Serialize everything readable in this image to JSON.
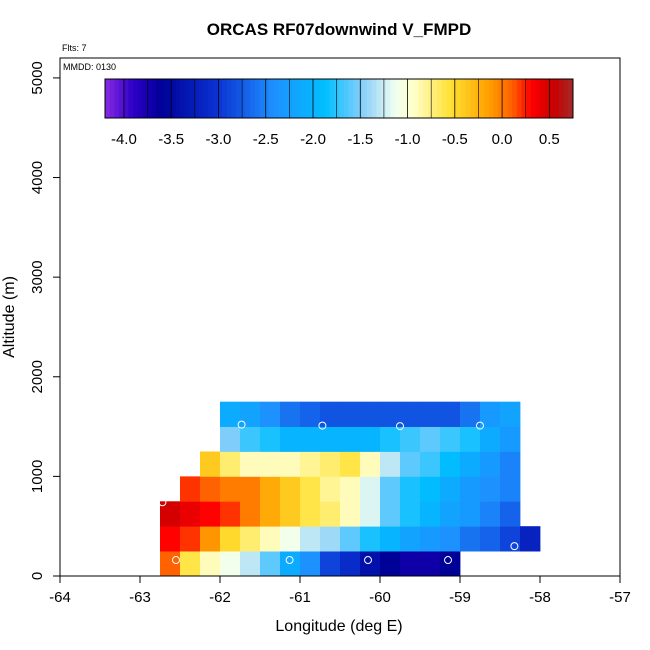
{
  "chart_data": {
    "type": "heatmap",
    "title": "ORCAS RF07downwind V_FMPD",
    "xlabel": "Longitude (deg E)",
    "ylabel": "Altitude (m)",
    "xlim": [
      -64,
      -57
    ],
    "ylim": [
      0,
      5200
    ],
    "x_ticks": [
      -64,
      -63,
      -62,
      -61,
      -60,
      -59,
      -58,
      -57
    ],
    "x_tick_labels": [
      "-64",
      "-63",
      "-62",
      "-61",
      "-60",
      "-59",
      "-58",
      "-57"
    ],
    "y_ticks": [
      0,
      1000,
      2000,
      3000,
      4000,
      5000
    ],
    "y_tick_labels": [
      "0",
      "1000",
      "2000",
      "3000",
      "4000",
      "5000"
    ],
    "annotations": {
      "flights": "Flts: 7",
      "mmdd": "MMDD: 0130"
    },
    "colorbar": {
      "range": [
        -4.2,
        0.75
      ],
      "ticks": [
        -4.0,
        -3.5,
        -3.0,
        -2.5,
        -2.0,
        -1.5,
        -1.0,
        -0.5,
        0.0,
        0.5
      ],
      "tick_labels": [
        "-4.0",
        "-3.5",
        "-3.0",
        "-2.5",
        "-2.0",
        "-1.5",
        "-1.0",
        "-0.5",
        "0.0",
        "0.5"
      ],
      "stops": [
        [
          0.0,
          "#8a2be2"
        ],
        [
          0.06,
          "#2d00c8"
        ],
        [
          0.12,
          "#000096"
        ],
        [
          0.24,
          "#0a32d2"
        ],
        [
          0.36,
          "#1e90ff"
        ],
        [
          0.47,
          "#00bfff"
        ],
        [
          0.55,
          "#87cefa"
        ],
        [
          0.62,
          "#f0fff0"
        ],
        [
          0.66,
          "#ffffc8"
        ],
        [
          0.74,
          "#ffe030"
        ],
        [
          0.82,
          "#ffa000"
        ],
        [
          0.87,
          "#ff6000"
        ],
        [
          0.91,
          "#ff0000"
        ],
        [
          0.96,
          "#c80000"
        ],
        [
          1.0,
          "#a52a2a"
        ]
      ]
    },
    "cell_size": {
      "lon": 0.25,
      "alt": 250
    },
    "cells": [
      {
        "row_alt": 0,
        "lon_start": -62.75,
        "values": [
          0.1,
          -0.6,
          -0.9,
          -1.1,
          -1.3,
          -1.6,
          -2.1,
          -2.4,
          -2.9,
          -3.1,
          -3.4,
          -3.6,
          -3.7,
          -3.7,
          -3.6
        ]
      },
      {
        "row_alt": 250,
        "lon_start": -62.75,
        "values": [
          0.3,
          0.2,
          -0.1,
          -0.5,
          -0.7,
          -0.9,
          -1.1,
          -1.3,
          -1.4,
          -1.6,
          -1.8,
          -2.0,
          -2.2,
          -2.3,
          -2.4,
          -2.6,
          -2.7,
          -2.9,
          -3.2
        ]
      },
      {
        "row_alt": 500,
        "lon_start": -62.75,
        "values": [
          0.5,
          0.4,
          0.3,
          0.2,
          0.0,
          -0.2,
          -0.4,
          -0.6,
          -0.7,
          -0.9,
          -1.2,
          -1.6,
          -1.8,
          -2.0,
          -2.2,
          -2.3,
          -2.5,
          -2.7
        ]
      },
      {
        "row_alt": 750,
        "lon_start": -62.5,
        "values": [
          0.2,
          0.1,
          0.0,
          0.0,
          -0.2,
          -0.4,
          -0.6,
          -0.8,
          -0.9,
          -1.2,
          -1.6,
          -1.8,
          -1.9,
          -2.1,
          -2.3,
          -2.4,
          -2.5
        ]
      },
      {
        "row_alt": 1000,
        "lon_start": -62.25,
        "values": [
          -0.4,
          -0.7,
          -0.9,
          -0.9,
          -0.9,
          -0.8,
          -0.7,
          -0.6,
          -0.9,
          -1.3,
          -1.6,
          -1.7,
          -1.9,
          -2.1,
          -2.3,
          -2.5
        ]
      },
      {
        "row_alt": 1250,
        "lon_start": -62.0,
        "values": [
          -1.5,
          -1.7,
          -1.8,
          -2.0,
          -2.0,
          -2.0,
          -2.0,
          -2.0,
          -1.8,
          -1.7,
          -1.6,
          -1.7,
          -1.8,
          -2.1,
          -2.3
        ]
      },
      {
        "row_alt": 1500,
        "lon_start": -62.0,
        "values": [
          -2.1,
          -2.2,
          -2.4,
          -2.6,
          -2.7,
          -2.8,
          -2.8,
          -2.8,
          -2.8,
          -2.8,
          -2.8,
          -2.8,
          -2.6,
          -2.3,
          -2.2
        ]
      }
    ],
    "flight_markers": [
      {
        "lon": -62.55,
        "alt": 160
      },
      {
        "lon": -62.72,
        "alt": 740
      },
      {
        "lon": -61.73,
        "alt": 1520
      },
      {
        "lon": -61.13,
        "alt": 160
      },
      {
        "lon": -60.72,
        "alt": 1510
      },
      {
        "lon": -60.15,
        "alt": 160
      },
      {
        "lon": -59.75,
        "alt": 1505
      },
      {
        "lon": -59.15,
        "alt": 160
      },
      {
        "lon": -58.75,
        "alt": 1510
      },
      {
        "lon": -58.32,
        "alt": 300
      }
    ]
  }
}
